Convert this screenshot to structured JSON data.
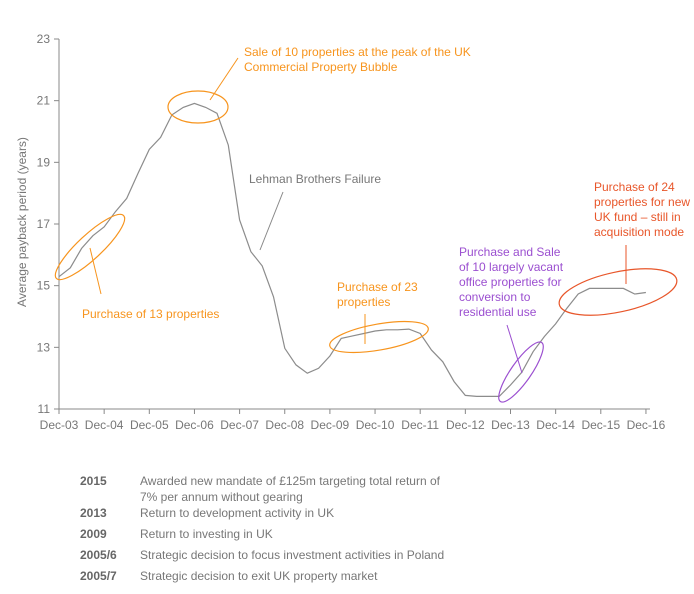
{
  "chart_data": {
    "type": "line",
    "title": "",
    "xlabel": "",
    "ylabel": "Average payback period (years)",
    "ylim": [
      11,
      23
    ],
    "yticks": [
      11,
      13,
      15,
      17,
      19,
      21,
      23
    ],
    "xtick_labels": [
      "Dec-03",
      "Dec-04",
      "Dec-05",
      "Dec-06",
      "Dec-07",
      "Dec-08",
      "Dec-09",
      "Dec-10",
      "Dec-11",
      "Dec-12",
      "Dec-13",
      "Dec-14",
      "Dec-15",
      "Dec-16"
    ],
    "x_unit": "years since Dec-03",
    "series": [
      {
        "name": "Average payback period",
        "color": "#8c8c8c",
        "x": [
          0,
          0.25,
          0.5,
          0.75,
          1,
          1.25,
          1.5,
          1.75,
          2,
          2.25,
          2.5,
          2.75,
          3,
          3.25,
          3.5,
          3.75,
          4,
          4.25,
          4.5,
          4.75,
          5,
          5.25,
          5.5,
          5.75,
          6,
          6.25,
          6.5,
          6.75,
          7,
          7.25,
          7.5,
          7.75,
          8,
          8.25,
          8.5,
          8.75,
          9,
          9.25,
          9.5,
          9.75,
          10,
          10.25,
          10.5,
          10.75,
          11,
          11.25,
          11.5,
          11.75,
          12,
          12.25,
          12.5,
          12.75,
          13
        ],
        "y": [
          15.29,
          15.58,
          16.21,
          16.62,
          16.91,
          17.4,
          17.83,
          18.64,
          19.42,
          19.81,
          20.54,
          20.78,
          20.91,
          20.78,
          20.59,
          19.56,
          17.13,
          16.1,
          15.64,
          14.64,
          12.97,
          12.43,
          12.16,
          12.32,
          12.72,
          13.29,
          13.37,
          13.45,
          13.53,
          13.57,
          13.57,
          13.59,
          13.45,
          12.91,
          12.53,
          11.89,
          11.44,
          11.41,
          11.41,
          11.41,
          11.78,
          12.19,
          12.86,
          13.35,
          13.76,
          14.27,
          14.73,
          14.91,
          14.91,
          14.91,
          14.91,
          14.73,
          14.78
        ]
      }
    ],
    "annotations": [
      {
        "id": "sale10",
        "lines": [
          "Sale of 10 properties at the peak of the UK",
          "Commercial Property Bubble"
        ],
        "color": "#F7941D"
      },
      {
        "id": "purchase13",
        "lines": [
          "Purchase of 13 properties"
        ],
        "color": "#F7941D"
      },
      {
        "id": "lehman",
        "lines": [
          "Lehman Brothers Failure"
        ],
        "color": "#777777"
      },
      {
        "id": "purchase23",
        "lines": [
          "Purchase of 23",
          "properties"
        ],
        "color": "#F7941D"
      },
      {
        "id": "purchasesale10",
        "lines": [
          "Purchase and Sale",
          "of 10 largely vacant",
          "office properties for",
          "conversion to",
          "residential use"
        ],
        "color": "#9B4FD0"
      },
      {
        "id": "purchase24",
        "lines": [
          "Purchase of 24",
          "properties for new",
          "UK fund – still in",
          "acquisition mode"
        ],
        "color": "#E8562A"
      }
    ]
  },
  "events": [
    {
      "year": "2015",
      "lines": [
        "Awarded new mandate of £125m targeting total return of",
        "7% per annum without gearing"
      ]
    },
    {
      "year": "2013",
      "lines": [
        "Return to development activity in UK"
      ]
    },
    {
      "year": "2009",
      "lines": [
        "Return to investing in UK"
      ]
    },
    {
      "year": "2005/6",
      "lines": [
        "Strategic decision to focus investment activities in Poland"
      ]
    },
    {
      "year": "2005/7",
      "lines": [
        "Strategic decision to exit UK property market"
      ]
    }
  ]
}
